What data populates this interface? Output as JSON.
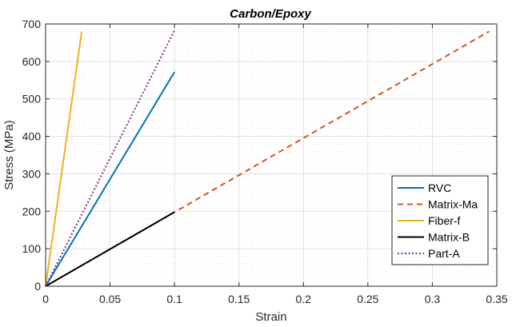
{
  "chart_data": {
    "type": "line",
    "title": "Carbon/Epoxy",
    "xlabel": "Strain",
    "ylabel": "Stress (MPa)",
    "xlim": [
      0,
      0.35
    ],
    "ylim": [
      0,
      700
    ],
    "x_ticks": [
      0,
      0.05,
      0.1,
      0.15,
      0.2,
      0.25,
      0.3,
      0.35
    ],
    "x_tick_labels": [
      "0",
      "0.05",
      "0.1",
      "0.15",
      "0.2",
      "0.25",
      "0.3",
      "0.35"
    ],
    "y_ticks": [
      0,
      100,
      200,
      300,
      400,
      500,
      600,
      700
    ],
    "y_tick_labels": [
      "0",
      "100",
      "200",
      "300",
      "400",
      "500",
      "600",
      "700"
    ],
    "grid": true,
    "minor_grid": true,
    "legend_position": "bottom-right",
    "series": [
      {
        "name": "RVC",
        "color": "#0072BD",
        "style": "solid",
        "x": [
          0,
          0.1
        ],
        "y": [
          0,
          572
        ]
      },
      {
        "name": "Matrix-Ma",
        "color": "#D95319",
        "style": "dashed",
        "x": [
          0,
          0.344
        ],
        "y": [
          0,
          680
        ]
      },
      {
        "name": "Fiber-f",
        "color": "#EDB120",
        "style": "solid",
        "x": [
          0,
          0.028
        ],
        "y": [
          0,
          680
        ]
      },
      {
        "name": "Matrix-B",
        "color": "#000000",
        "style": "solid",
        "x": [
          0,
          0.1
        ],
        "y": [
          0,
          198
        ]
      },
      {
        "name": "Part-A",
        "color": "#7E2F8E",
        "style": "dotted",
        "x": [
          0,
          0.1
        ],
        "y": [
          0,
          683
        ]
      }
    ]
  }
}
